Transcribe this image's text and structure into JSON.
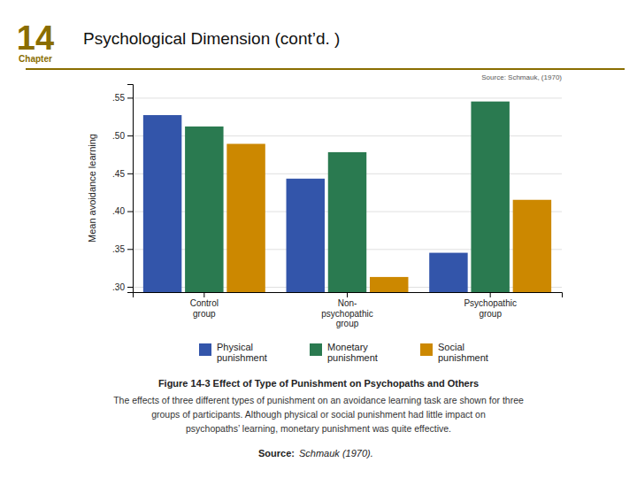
{
  "chart_data": {
    "type": "bar",
    "title": "Psychological Dimension (cont’d. )",
    "ylabel": "Mean avoidance learning",
    "categories": [
      "Control\ngroup",
      "Non-\npsychopathic\ngroup",
      "Psychopathic\ngroup"
    ],
    "series": [
      {
        "name": "Physical\npunishment",
        "color": "#3355aa",
        "values": [
          0.527,
          0.443,
          0.345
        ]
      },
      {
        "name": "Monetary\npunishment",
        "color": "#2a7a50",
        "values": [
          0.512,
          0.478,
          0.545
        ]
      },
      {
        "name": "Social\npunishment",
        "color": "#cc8800",
        "values": [
          0.489,
          0.313,
          0.415
        ]
      }
    ],
    "ylim": [
      0.293,
      0.568
    ],
    "yticks": [
      {
        "value": 0.3,
        "label": ".30"
      },
      {
        "value": 0.35,
        "label": ".35"
      },
      {
        "value": 0.4,
        "label": ".40"
      },
      {
        "value": 0.45,
        "label": ".45"
      },
      {
        "value": 0.5,
        "label": ".50"
      },
      {
        "value": 0.55,
        "label": ".55"
      }
    ],
    "grid": true,
    "legend": "bottom",
    "annotations": [
      "14",
      "Chapter",
      "Source: Schmauk, (1970)",
      "Figure 14-3 Effect of Type of Punishment on Psychopaths and Others",
      "The effects of three different types of punishment on an avoidance learning task are shown for three",
      "groups of participants. Although physical or social punishment had little impact on",
      "psychopaths’ learning, monetary punishment was quite effective.",
      "Source:",
      "Schmauk (1970)."
    ]
  }
}
